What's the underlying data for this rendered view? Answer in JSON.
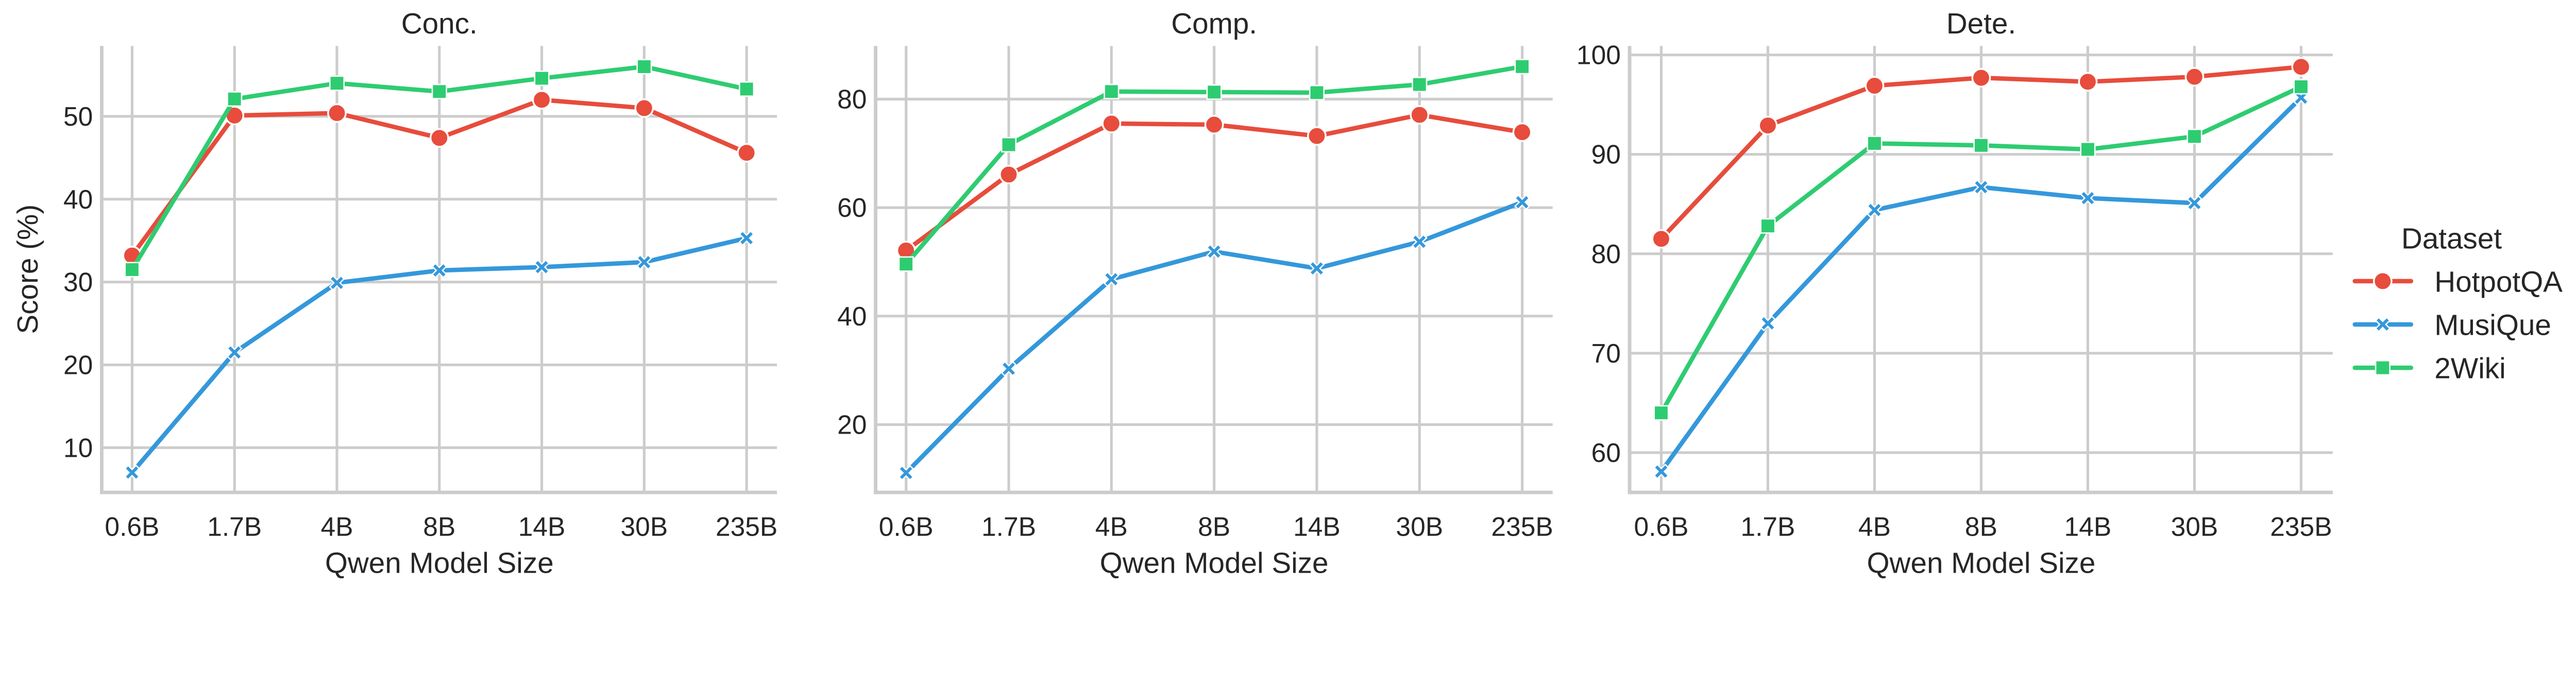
{
  "chart_data": [
    {
      "type": "line",
      "title": "Conc.",
      "xlabel": "Qwen Model Size",
      "ylabel": "Score (%)",
      "categories": [
        "0.6B",
        "1.7B",
        "4B",
        "8B",
        "14B",
        "30B",
        "235B"
      ],
      "yticks": [
        10,
        20,
        30,
        40,
        50
      ],
      "ylim": [
        4.6,
        58.5
      ],
      "grid": true,
      "series": [
        {
          "name": "HotpotQA",
          "values": [
            33.2,
            50.1,
            50.4,
            47.4,
            52.0,
            51.0,
            45.6
          ]
        },
        {
          "name": "MusiQue",
          "values": [
            7.0,
            21.5,
            29.9,
            31.4,
            31.8,
            32.4,
            35.3
          ]
        },
        {
          "name": "2Wiki",
          "values": [
            31.5,
            52.1,
            54.0,
            53.0,
            54.6,
            56.0,
            53.3
          ]
        }
      ]
    },
    {
      "type": "line",
      "title": "Comp.",
      "xlabel": "Qwen Model Size",
      "ylabel": "",
      "categories": [
        "0.6B",
        "1.7B",
        "4B",
        "8B",
        "14B",
        "30B",
        "235B"
      ],
      "yticks": [
        20,
        40,
        60,
        80
      ],
      "ylim": [
        7.5,
        89.8
      ],
      "grid": true,
      "series": [
        {
          "name": "HotpotQA",
          "values": [
            52.1,
            66.1,
            75.5,
            75.3,
            73.2,
            77.1,
            73.9
          ]
        },
        {
          "name": "MusiQue",
          "values": [
            11.1,
            30.3,
            46.8,
            51.9,
            48.8,
            53.7,
            61.0
          ]
        },
        {
          "name": "2Wiki",
          "values": [
            49.6,
            71.6,
            81.4,
            81.3,
            81.2,
            82.7,
            86.0
          ]
        }
      ]
    },
    {
      "type": "line",
      "title": "Dete.",
      "xlabel": "Qwen Model Size",
      "ylabel": "",
      "categories": [
        "0.6B",
        "1.7B",
        "4B",
        "8B",
        "14B",
        "30B",
        "235B"
      ],
      "yticks": [
        60,
        70,
        80,
        90,
        100
      ],
      "ylim": [
        56.0,
        100.9
      ],
      "grid": true,
      "series": [
        {
          "name": "HotpotQA",
          "values": [
            81.5,
            92.9,
            96.9,
            97.7,
            97.3,
            97.8,
            98.8
          ]
        },
        {
          "name": "MusiQue",
          "values": [
            58.1,
            73.0,
            84.4,
            86.7,
            85.6,
            85.1,
            95.7
          ]
        },
        {
          "name": "2Wiki",
          "values": [
            64.0,
            82.8,
            91.1,
            90.9,
            90.5,
            91.8,
            96.8
          ]
        }
      ]
    }
  ],
  "legend": {
    "title": "Dataset",
    "placement": "right",
    "items": [
      {
        "name": "HotpotQA",
        "color": "#e74c3c",
        "marker": "circle"
      },
      {
        "name": "MusiQue",
        "color": "#3498db",
        "marker": "x"
      },
      {
        "name": "2Wiki",
        "color": "#2ecc71",
        "marker": "square"
      }
    ]
  }
}
